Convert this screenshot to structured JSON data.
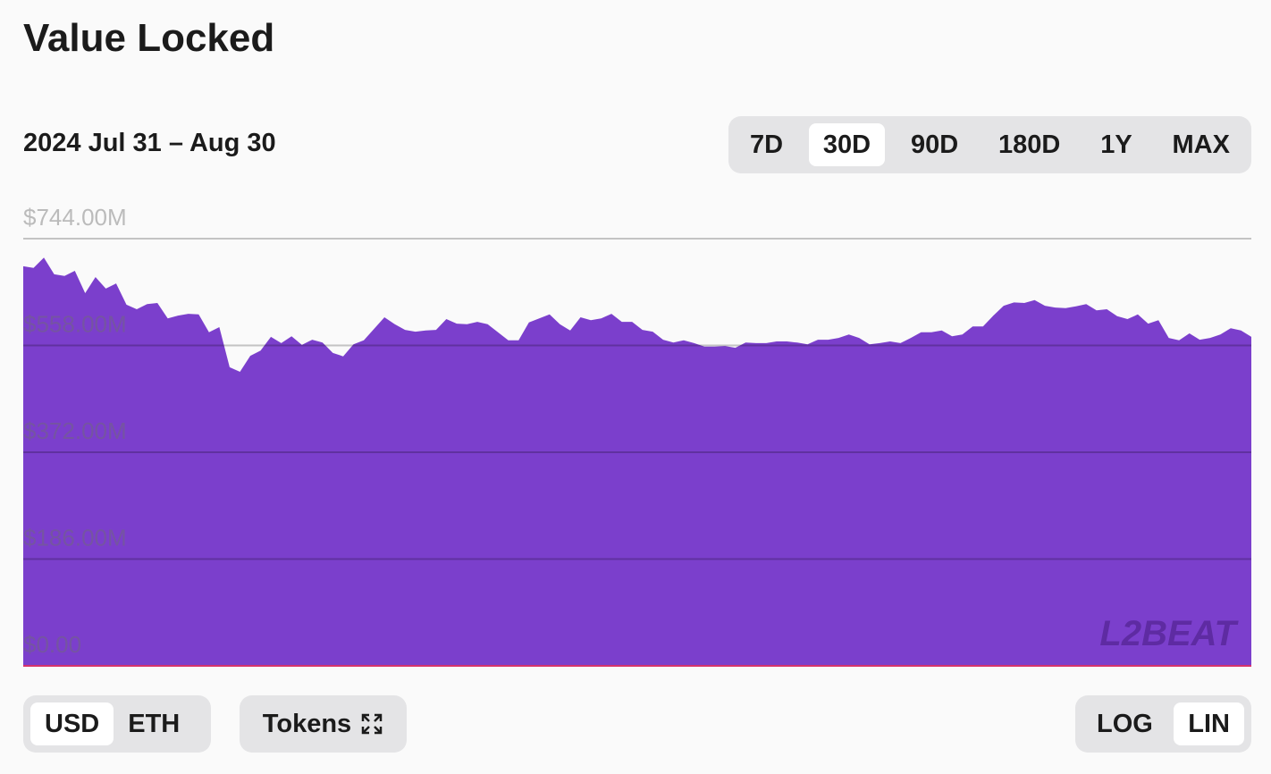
{
  "header": {
    "title": "Value Locked",
    "date_range": "2024 Jul 31 – Aug 30"
  },
  "range_buttons": [
    "7D",
    "30D",
    "90D",
    "180D",
    "1Y",
    "MAX"
  ],
  "unit_buttons": [
    "USD",
    "ETH"
  ],
  "tokens_button": "Tokens",
  "scale_buttons": [
    "LOG",
    "LIN"
  ],
  "watermark": "L2BEAT",
  "chart_data": {
    "type": "area",
    "color": "#7b3fcc",
    "log_scale": false,
    "grid": true,
    "ylim": [
      0,
      744
    ],
    "yticks": [
      {
        "value": 0,
        "label": "$0.00"
      },
      {
        "value": 186,
        "label": "$186.00M"
      },
      {
        "value": 372,
        "label": "$372.00M"
      },
      {
        "value": 558,
        "label": "$558.00M"
      },
      {
        "value": 744,
        "label": "$744.00M"
      }
    ],
    "values": [
      696,
      693,
      711,
      682,
      679,
      688,
      649,
      677,
      657,
      666,
      629,
      621,
      630,
      632,
      605,
      610,
      613,
      612,
      581,
      590,
      520,
      512,
      540,
      549,
      573,
      562,
      574,
      559,
      568,
      563,
      545,
      539,
      560,
      567,
      587,
      607,
      595,
      585,
      582,
      584,
      585,
      604,
      596,
      595,
      599,
      595,
      581,
      567,
      567,
      598,
      605,
      612,
      595,
      584,
      607,
      602,
      605,
      613,
      599,
      599,
      585,
      582,
      568,
      563,
      567,
      562,
      556,
      556,
      557,
      554,
      563,
      562,
      562,
      565,
      565,
      563,
      560,
      568,
      568,
      571,
      577,
      571,
      560,
      562,
      565,
      562,
      571,
      581,
      581,
      584,
      574,
      577,
      591,
      591,
      610,
      627,
      633,
      632,
      637,
      627,
      624,
      623,
      626,
      630,
      619,
      621,
      609,
      604,
      612,
      596,
      602,
      571,
      567,
      579,
      568,
      571,
      577,
      588,
      584,
      573
    ]
  }
}
